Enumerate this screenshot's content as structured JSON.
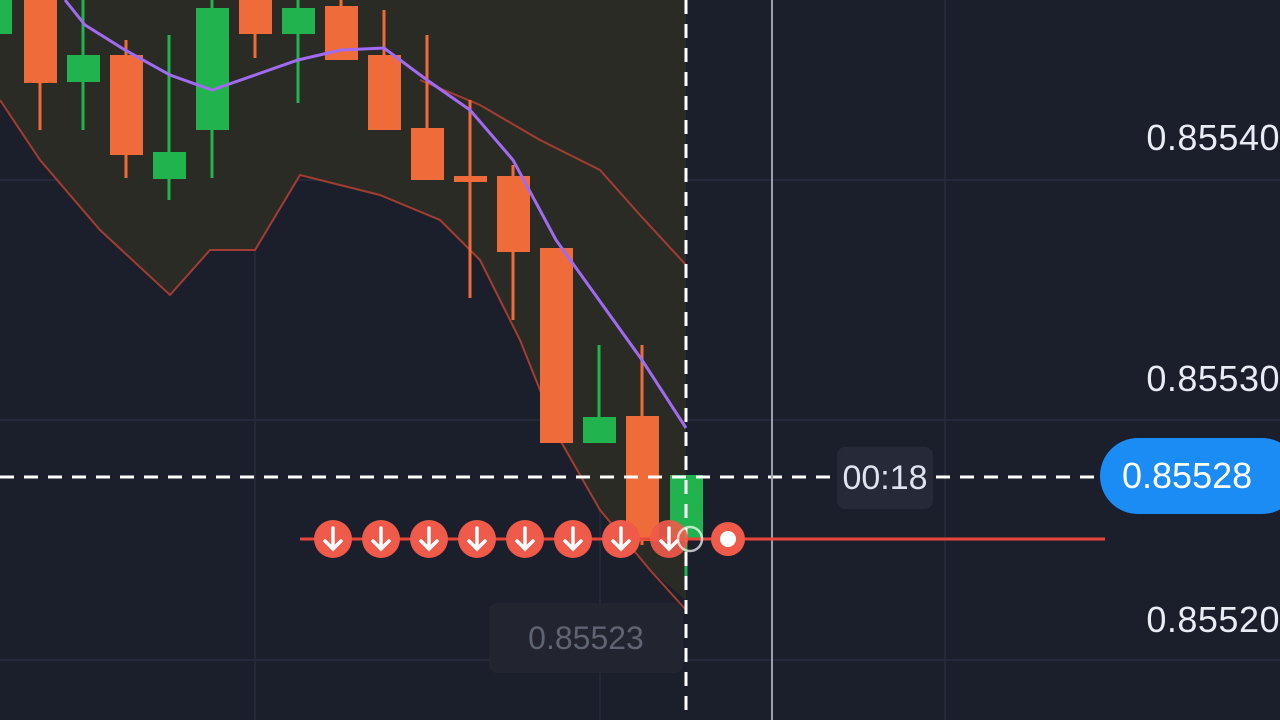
{
  "app": "trading-chart",
  "price_axis": [
    "0.85540",
    "0.85530",
    "0.85520"
  ],
  "current_price": "0.85528",
  "timer": "00:18",
  "hover_price": "0.85523",
  "trade_markers": {
    "direction": "down",
    "count": 8
  },
  "colors": {
    "background": "#1b1e2b",
    "band_fill": "#2b2b25",
    "bearish": "#ef6b3a",
    "bullish": "#21b34d",
    "moving_average": "#a06bf0",
    "band_line": "#a33c32",
    "trade_line": "#e8453c",
    "accent": "#1a8cf4"
  },
  "icons": {
    "trade_marker": "down-arrow-icon",
    "expiry_point": "circle-dot-icon"
  }
}
